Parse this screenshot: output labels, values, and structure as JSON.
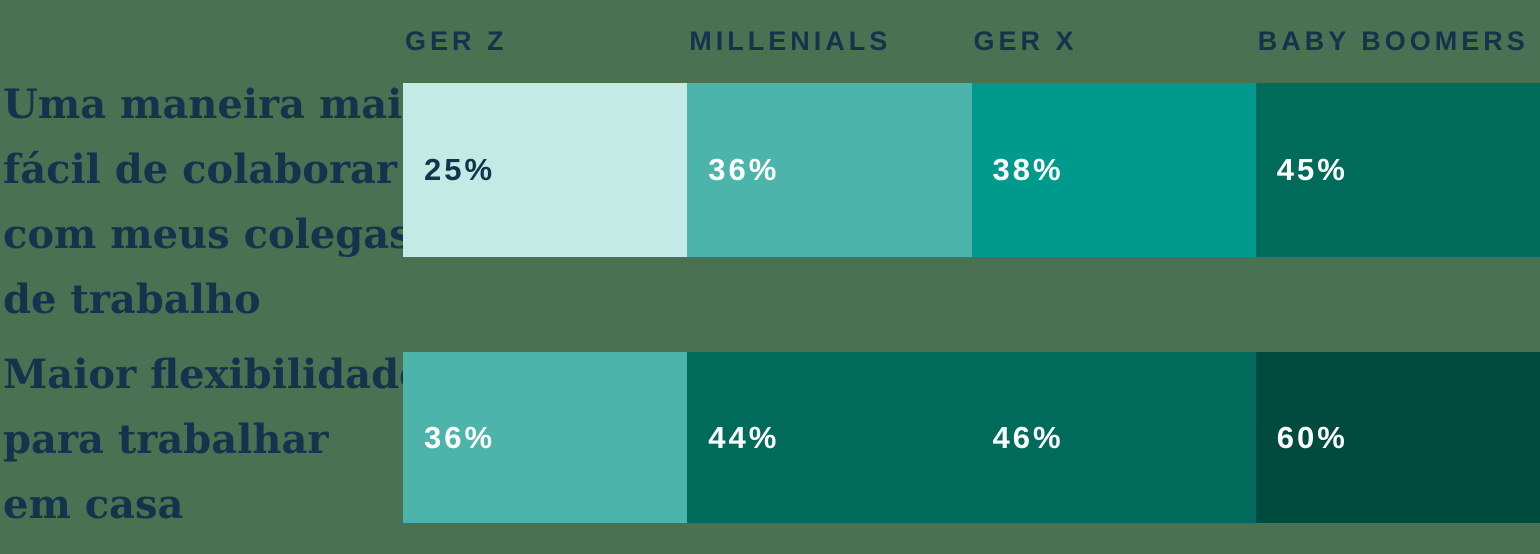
{
  "chart_data": {
    "type": "heatmap",
    "title": "",
    "columns": [
      "GER Z",
      "MILLENIALS",
      "GER X",
      "BABY BOOMERS"
    ],
    "rows": [
      {
        "label": "Uma maneira mais fácil de colaborar com meus colegas de trabalho",
        "values": [
          25,
          36,
          38,
          45
        ]
      },
      {
        "label": "Maior flexibilidade para trabalhar em casa",
        "values": [
          36,
          44,
          46,
          60
        ]
      }
    ],
    "unit": "percent",
    "legend": "none",
    "layout_hint": "each row is a 4-segment equal-width strip; darker fill = higher percentage"
  },
  "colors": {
    "background": "#4A7151",
    "label_text": "#14344E",
    "white": "#FFFFFF",
    "scale": {
      "lightest": "#C3EAE4",
      "light": "#4CB4AB",
      "mid": "#009A8C",
      "dark": "#006A5B",
      "darkest": "#004B3D"
    }
  },
  "headers": [
    "GER Z",
    "MILLENIALS",
    "GER X",
    "BABY BOOMERS"
  ],
  "rows": [
    {
      "label_lines": [
        "Uma maneira mais",
        "fácil de colaborar",
        "com meus colegas",
        "de trabalho"
      ],
      "cells": [
        {
          "value": "25%",
          "bg": "#C3EAE4",
          "text": "#14344E"
        },
        {
          "value": "36%",
          "bg": "#4CB4AB",
          "text": "#FFFFFF"
        },
        {
          "value": "38%",
          "bg": "#009A8C",
          "text": "#FFFFFF"
        },
        {
          "value": "45%",
          "bg": "#006A5B",
          "text": "#FFFFFF"
        }
      ]
    },
    {
      "label_lines": [
        "Maior flexibilidade",
        "para trabalhar",
        "em casa"
      ],
      "cells": [
        {
          "value": "36%",
          "bg": "#4CB4AB",
          "text": "#FFFFFF"
        },
        {
          "value": "44%",
          "bg": "#006A5B",
          "text": "#FFFFFF"
        },
        {
          "value": "46%",
          "bg": "#006A5B",
          "text": "#FFFFFF"
        },
        {
          "value": "60%",
          "bg": "#004B3D",
          "text": "#FFFFFF"
        }
      ]
    }
  ]
}
